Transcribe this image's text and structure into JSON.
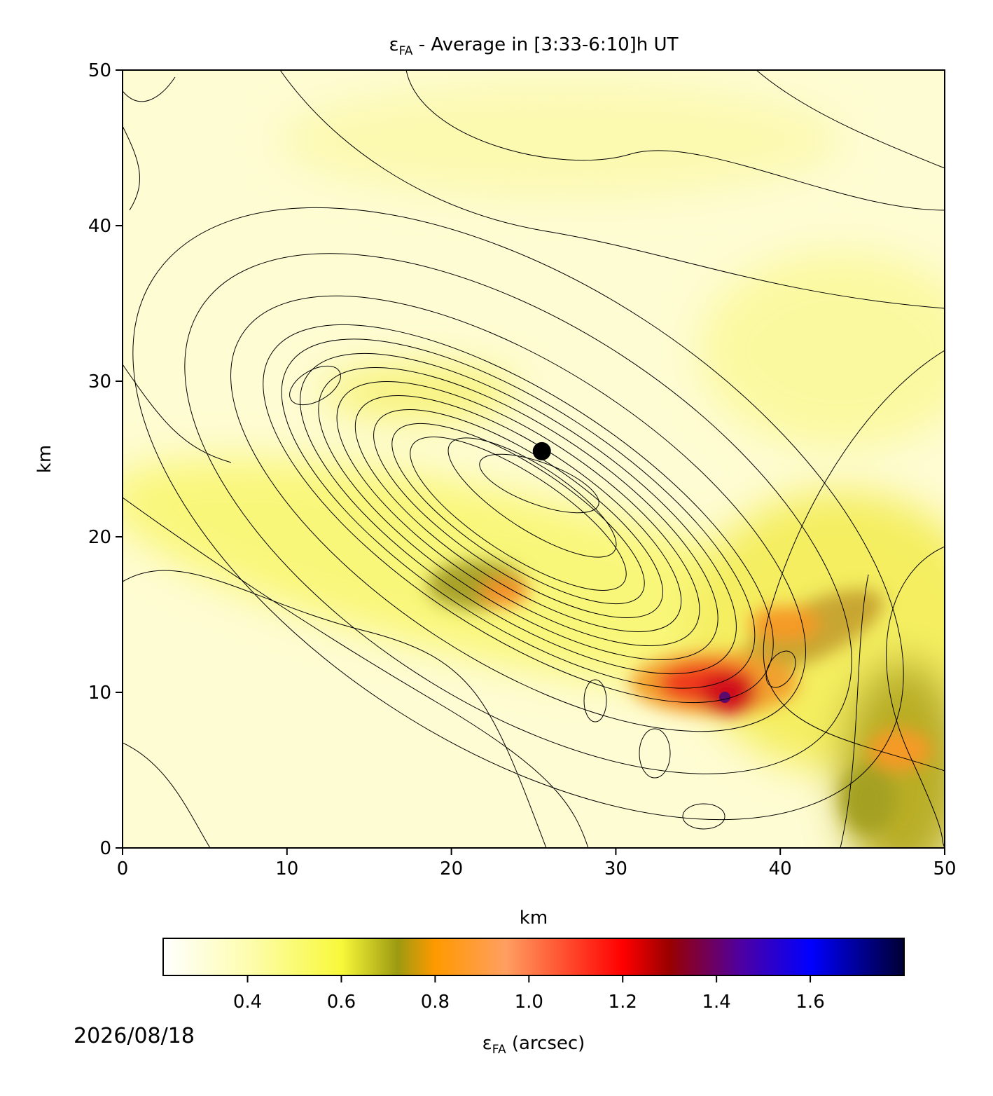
{
  "chart_data": {
    "type": "heatmap",
    "title": {
      "symbol": "ε",
      "subscript": "FA",
      "text": " - Average in [3:33-6:10]h UT"
    },
    "xlabel": "km",
    "ylabel": "km",
    "xlim": [
      0,
      50
    ],
    "ylim": [
      0,
      50
    ],
    "xticks": [
      0,
      10,
      20,
      30,
      40,
      50
    ],
    "yticks": [
      0,
      10,
      20,
      30,
      40,
      50
    ],
    "point": {
      "x": 25.5,
      "y": 25.5,
      "color": "#000000"
    },
    "colorbar": {
      "label": {
        "symbol": "ε",
        "subscript": "FA",
        "text": " (arcsec)"
      },
      "lim": [
        0.22,
        1.8
      ],
      "ticks": [
        {
          "value": 0.4,
          "label": "0.4"
        },
        {
          "value": 0.6,
          "label": "0.6"
        },
        {
          "value": 0.8,
          "label": "0.8"
        },
        {
          "value": 1.0,
          "label": "1.0"
        },
        {
          "value": 1.2,
          "label": "1.2"
        },
        {
          "value": 1.4,
          "label": "1.4"
        },
        {
          "value": 1.6,
          "label": "1.6"
        }
      ],
      "colormap": [
        {
          "value": 0.22,
          "color": "#ffffff"
        },
        {
          "value": 0.4,
          "color": "#fdfdb0"
        },
        {
          "value": 0.6,
          "color": "#f8f83a"
        },
        {
          "value": 0.72,
          "color": "#9c9a10"
        },
        {
          "value": 0.8,
          "color": "#ff9900"
        },
        {
          "value": 0.95,
          "color": "#ff9f60"
        },
        {
          "value": 1.2,
          "color": "#ff0000"
        },
        {
          "value": 1.3,
          "color": "#990000"
        },
        {
          "value": 1.45,
          "color": "#5000a0"
        },
        {
          "value": 1.6,
          "color": "#0000ff"
        },
        {
          "value": 1.8,
          "color": "#000033"
        }
      ]
    },
    "date": "2026/08/18"
  }
}
